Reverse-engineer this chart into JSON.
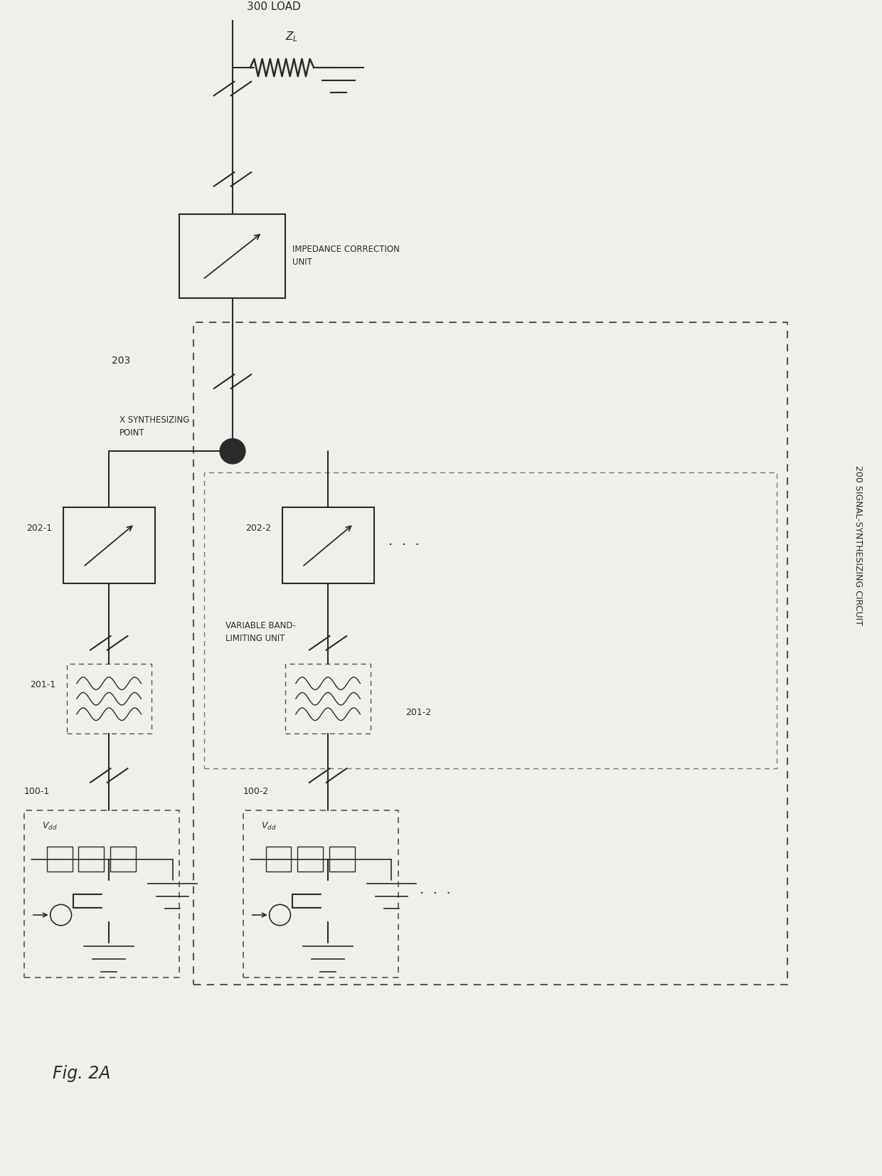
{
  "fig_label": "Fig. 2A",
  "side_label": "200 SIGNAL-SYNTHESIZING CIRCUIT",
  "bg_color": "#f0efe9",
  "lc": "#2a2a2a",
  "labels": {
    "load": "300 LOAD",
    "impedance_correction": "IMPEDANCE CORRECTION\nUNIT",
    "node_203": "203",
    "synthesizing_point": "X SYNTHESIZING\nPOINT",
    "variable_band_limiting": "VARIABLE BAND-\nLIMITING UNIT",
    "amp1": "202-1",
    "amp2": "202-2",
    "filt1": "201-1",
    "filt2": "201-2",
    "pa1": "100-1",
    "pa2": "100-2",
    "dots": "·  ·  ·"
  }
}
